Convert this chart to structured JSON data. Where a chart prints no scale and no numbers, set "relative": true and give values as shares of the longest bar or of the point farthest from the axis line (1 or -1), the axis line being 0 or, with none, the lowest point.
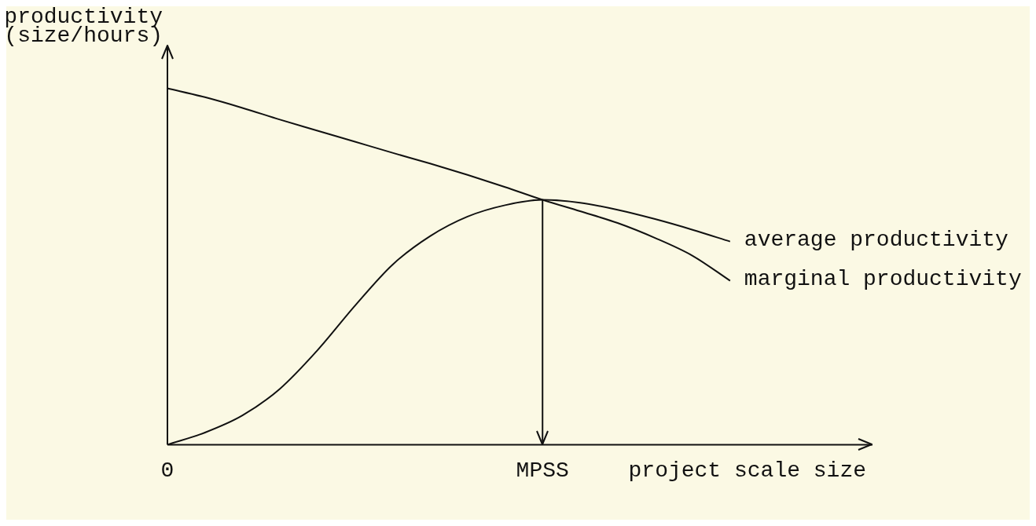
{
  "chart_data": {
    "type": "line",
    "relative": true,
    "xlabel": "project scale size",
    "ylabel": "productivity\n(size/hours)",
    "categories": [
      "0",
      null,
      null,
      null,
      null,
      null,
      null,
      null,
      null,
      null,
      "MPSS",
      null,
      null,
      null,
      null,
      null,
      null,
      null,
      null
    ],
    "ref_lines": [
      {
        "axis": "x",
        "value": "MPSS",
        "label": null,
        "color": "#111111"
      }
    ],
    "series": [
      {
        "name": "marginal productivity",
        "color": "#111111",
        "values": [
          1.0,
          0.975,
          0.945,
          0.912,
          0.881,
          0.85,
          0.819,
          0.789,
          0.757,
          0.723,
          0.687,
          0.655,
          0.622,
          0.58,
          0.53,
          0.46,
          null,
          null,
          null
        ]
      },
      {
        "name": "average productivity",
        "color": "#111111",
        "values": [
          0,
          0.034,
          0.082,
          0.157,
          0.265,
          0.39,
          0.505,
          0.585,
          0.64,
          0.672,
          0.687,
          0.679,
          0.659,
          0.633,
          0.603,
          0.57,
          null,
          null,
          null
        ]
      }
    ],
    "grid": false,
    "legend": false,
    "marker": "none",
    "line_style": "solid"
  }
}
